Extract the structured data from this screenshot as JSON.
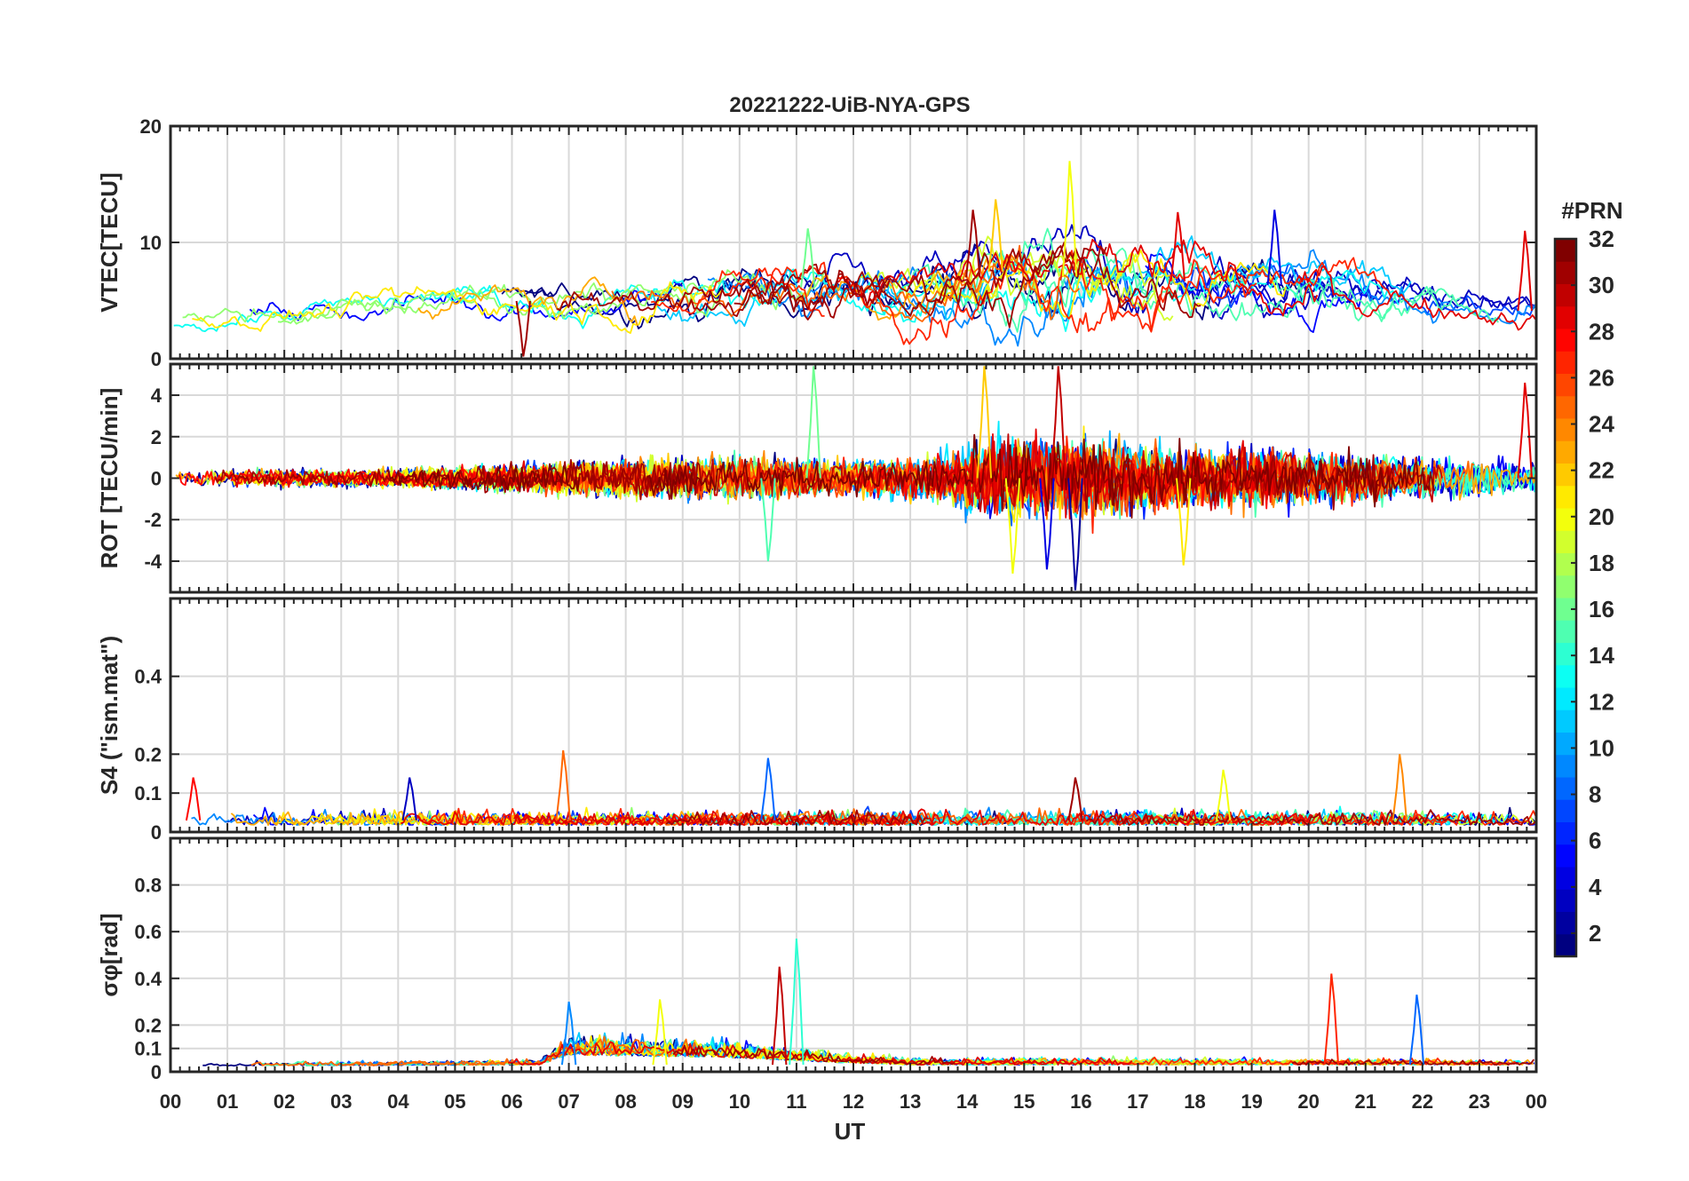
{
  "figure": {
    "title": "20221222-UiB-NYA-GPS",
    "xlabel": "UT",
    "colorbar_label": "#PRN"
  },
  "chart_data": {
    "type": "line",
    "x_axis": {
      "label": "UT",
      "range": [
        0,
        24
      ],
      "tick_labels": [
        "00",
        "01",
        "02",
        "03",
        "04",
        "05",
        "06",
        "07",
        "08",
        "09",
        "10",
        "11",
        "12",
        "13",
        "14",
        "15",
        "16",
        "17",
        "18",
        "19",
        "20",
        "21",
        "22",
        "23",
        "00"
      ]
    },
    "colorbar": {
      "label": "#PRN",
      "range": [
        1,
        32
      ],
      "tick_values": [
        2,
        4,
        6,
        8,
        10,
        12,
        14,
        16,
        18,
        20,
        22,
        24,
        26,
        28,
        30,
        32
      ],
      "colormap": "jet",
      "levels": 32
    },
    "panels": [
      {
        "id": "vtec",
        "ylabel": "VTEC[TECU]",
        "ylim": [
          0,
          20
        ],
        "yticks": [
          0,
          10,
          20
        ],
        "grid": true,
        "envelope": [
          {
            "t": 0,
            "base": 3.5,
            "amp": 1.2
          },
          {
            "t": 3,
            "base": 4.2,
            "amp": 1.4
          },
          {
            "t": 5,
            "base": 5.2,
            "amp": 1.6
          },
          {
            "t": 7,
            "base": 4.8,
            "amp": 1.8
          },
          {
            "t": 9,
            "base": 5.2,
            "amp": 2.2
          },
          {
            "t": 11,
            "base": 6.2,
            "amp": 2.8
          },
          {
            "t": 13,
            "base": 5.6,
            "amp": 2.6
          },
          {
            "t": 14.5,
            "base": 7.5,
            "amp": 3.8
          },
          {
            "t": 16,
            "base": 7.0,
            "amp": 4.2
          },
          {
            "t": 18,
            "base": 6.6,
            "amp": 3.4
          },
          {
            "t": 20,
            "base": 6.2,
            "amp": 2.8
          },
          {
            "t": 22,
            "base": 5.2,
            "amp": 2.0
          },
          {
            "t": 24,
            "base": 4.0,
            "amp": 1.6
          }
        ],
        "peaks": [
          {
            "t": 15.8,
            "v": 17.0,
            "prn": 20
          },
          {
            "t": 14.5,
            "v": 13.7,
            "prn": 22
          },
          {
            "t": 14.1,
            "v": 12.8,
            "prn": 31
          },
          {
            "t": 19.4,
            "v": 12.8,
            "prn": 4
          },
          {
            "t": 17.7,
            "v": 12.6,
            "prn": 29
          },
          {
            "t": 23.8,
            "v": 11.0,
            "prn": 29
          },
          {
            "t": 11.2,
            "v": 11.2,
            "prn": 16
          },
          {
            "t": 6.2,
            "v": 0.2,
            "prn": 31
          }
        ]
      },
      {
        "id": "rot",
        "ylabel": "ROT [TECU/min]",
        "ylim": [
          -5.5,
          5.5
        ],
        "yticks": [
          -4,
          -2,
          0,
          2,
          4
        ],
        "grid": true,
        "envelope": [
          {
            "t": 0,
            "amp": 0.6
          },
          {
            "t": 4,
            "amp": 0.7
          },
          {
            "t": 6,
            "amp": 1.0
          },
          {
            "t": 8,
            "amp": 1.4
          },
          {
            "t": 10,
            "amp": 1.6
          },
          {
            "t": 12,
            "amp": 1.3
          },
          {
            "t": 13.5,
            "amp": 1.8
          },
          {
            "t": 14.5,
            "amp": 3.2
          },
          {
            "t": 16,
            "amp": 3.0
          },
          {
            "t": 17.5,
            "amp": 2.4
          },
          {
            "t": 20,
            "amp": 2.0
          },
          {
            "t": 22,
            "amp": 1.6
          },
          {
            "t": 24,
            "amp": 1.2
          }
        ],
        "peaks": [
          {
            "t": 14.3,
            "v": 5.4,
            "prn": 22
          },
          {
            "t": 14.8,
            "v": -4.6,
            "prn": 20
          },
          {
            "t": 15.4,
            "v": -4.4,
            "prn": 4
          },
          {
            "t": 15.9,
            "v": -5.4,
            "prn": 2
          },
          {
            "t": 15.6,
            "v": 5.4,
            "prn": 30
          },
          {
            "t": 11.3,
            "v": 5.4,
            "prn": 16
          },
          {
            "t": 17.8,
            "v": -4.2,
            "prn": 21
          },
          {
            "t": 23.8,
            "v": 4.6,
            "prn": 29
          },
          {
            "t": 10.5,
            "v": -4.0,
            "prn": 15
          }
        ]
      },
      {
        "id": "s4",
        "ylabel": "S4 (\"ism.mat\")",
        "ylim": [
          0,
          0.6
        ],
        "yticks": [
          0,
          0.1,
          0.2,
          0.4
        ],
        "grid": true,
        "envelope": [
          {
            "t": 0,
            "base": 0.03,
            "amp": 0.05
          },
          {
            "t": 6,
            "base": 0.03,
            "amp": 0.05
          },
          {
            "t": 12,
            "base": 0.03,
            "amp": 0.05
          },
          {
            "t": 18,
            "base": 0.03,
            "amp": 0.05
          },
          {
            "t": 24,
            "base": 0.03,
            "amp": 0.05
          }
        ],
        "peaks": [
          {
            "t": 6.9,
            "v": 0.21,
            "prn": 25
          },
          {
            "t": 10.5,
            "v": 0.19,
            "prn": 8
          },
          {
            "t": 21.6,
            "v": 0.2,
            "prn": 24
          },
          {
            "t": 18.5,
            "v": 0.16,
            "prn": 20
          },
          {
            "t": 0.4,
            "v": 0.14,
            "prn": 28
          },
          {
            "t": 4.2,
            "v": 0.14,
            "prn": 3
          },
          {
            "t": 15.9,
            "v": 0.14,
            "prn": 31
          }
        ]
      },
      {
        "id": "sigma_phi",
        "ylabel": "σφ[rad]",
        "ylim": [
          0,
          1.0
        ],
        "yticks": [
          0,
          0.1,
          0.2,
          0.4,
          0.6,
          0.8
        ],
        "grid": true,
        "envelope": [
          {
            "t": 0,
            "base": 0.04,
            "amp": 0.02
          },
          {
            "t": 6.5,
            "base": 0.05,
            "amp": 0.03
          },
          {
            "t": 7,
            "base": 0.12,
            "amp": 0.12
          },
          {
            "t": 10,
            "base": 0.1,
            "amp": 0.1
          },
          {
            "t": 11.5,
            "base": 0.07,
            "amp": 0.06
          },
          {
            "t": 13,
            "base": 0.05,
            "amp": 0.04
          },
          {
            "t": 18,
            "base": 0.05,
            "amp": 0.04
          },
          {
            "t": 24,
            "base": 0.05,
            "amp": 0.03
          }
        ],
        "peaks": [
          {
            "t": 11.0,
            "v": 0.57,
            "prn": 14
          },
          {
            "t": 10.7,
            "v": 0.45,
            "prn": 30
          },
          {
            "t": 20.4,
            "v": 0.42,
            "prn": 27
          },
          {
            "t": 21.9,
            "v": 0.33,
            "prn": 8
          },
          {
            "t": 7.0,
            "v": 0.3,
            "prn": 9
          },
          {
            "t": 8.6,
            "v": 0.31,
            "prn": 20
          }
        ]
      }
    ],
    "series": [
      {
        "prn": 1
      },
      {
        "prn": 2
      },
      {
        "prn": 3
      },
      {
        "prn": 4
      },
      {
        "prn": 5
      },
      {
        "prn": 6
      },
      {
        "prn": 7
      },
      {
        "prn": 8
      },
      {
        "prn": 9
      },
      {
        "prn": 10
      },
      {
        "prn": 11
      },
      {
        "prn": 12
      },
      {
        "prn": 13
      },
      {
        "prn": 14
      },
      {
        "prn": 15
      },
      {
        "prn": 16
      },
      {
        "prn": 17
      },
      {
        "prn": 18
      },
      {
        "prn": 19
      },
      {
        "prn": 20
      },
      {
        "prn": 21
      },
      {
        "prn": 22
      },
      {
        "prn": 23
      },
      {
        "prn": 24
      },
      {
        "prn": 25
      },
      {
        "prn": 26
      },
      {
        "prn": 27
      },
      {
        "prn": 28
      },
      {
        "prn": 29
      },
      {
        "prn": 30
      },
      {
        "prn": 31
      },
      {
        "prn": 32
      }
    ]
  }
}
